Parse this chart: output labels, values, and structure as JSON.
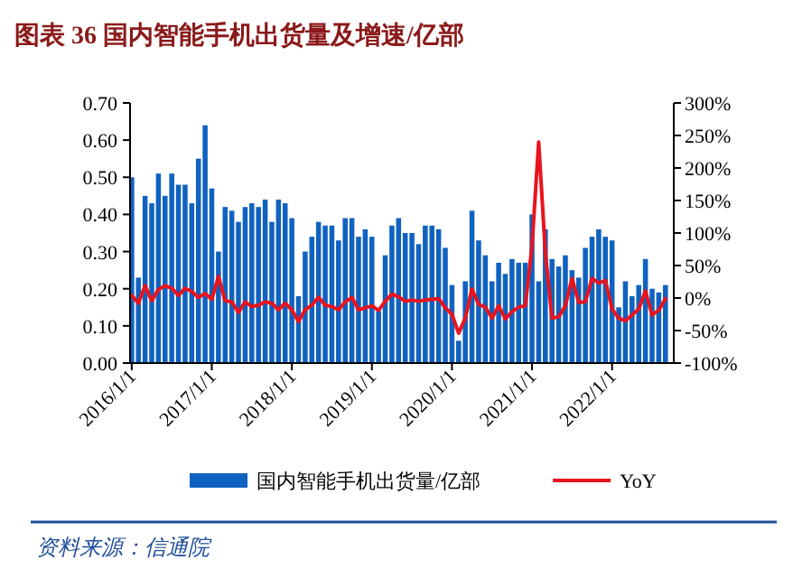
{
  "chart_data": {
    "type": "bar",
    "title": "图表 36   国内智能手机出货量及增速/亿部",
    "categories": [
      "2016/1/1",
      null,
      null,
      null,
      null,
      null,
      null,
      null,
      null,
      null,
      null,
      null,
      "2017/1/1",
      null,
      null,
      null,
      null,
      null,
      null,
      null,
      null,
      null,
      null,
      null,
      "2018/1/1",
      null,
      null,
      null,
      null,
      null,
      null,
      null,
      null,
      null,
      null,
      null,
      "2019/1/1",
      null,
      null,
      null,
      null,
      null,
      null,
      null,
      null,
      null,
      null,
      null,
      "2020/1/1",
      null,
      null,
      null,
      null,
      null,
      null,
      null,
      null,
      null,
      null,
      null,
      "2021/1/1",
      null,
      null,
      null,
      null,
      null,
      null,
      null,
      null,
      null,
      null,
      null,
      "2022/1/1",
      null,
      null,
      null,
      null,
      null,
      null,
      null,
      null
    ],
    "series": [
      {
        "name": "国内智能手机出货量/亿部",
        "color": "#1062c0",
        "values": [
          0.5,
          0.23,
          0.45,
          0.43,
          0.51,
          0.45,
          0.51,
          0.48,
          0.48,
          0.43,
          0.55,
          0.64,
          0.47,
          0.3,
          0.42,
          0.41,
          0.38,
          0.42,
          0.43,
          0.42,
          0.44,
          0.38,
          0.44,
          0.43,
          0.39,
          0.18,
          0.3,
          0.34,
          0.38,
          0.37,
          0.37,
          0.33,
          0.39,
          0.39,
          0.34,
          0.36,
          0.34,
          0.14,
          0.29,
          0.37,
          0.39,
          0.35,
          0.35,
          0.32,
          0.37,
          0.37,
          0.36,
          0.31,
          0.21,
          0.06,
          0.22,
          0.41,
          0.33,
          0.29,
          0.22,
          0.27,
          0.24,
          0.28,
          0.27,
          0.27,
          0.4,
          0.22,
          0.36,
          0.28,
          0.26,
          0.29,
          0.25,
          0.23,
          0.31,
          0.34,
          0.36,
          0.34,
          0.33,
          0.15,
          0.22,
          0.18,
          0.21,
          0.28,
          0.2,
          0.19,
          0.21
        ]
      },
      {
        "name": "YoY",
        "type": "line",
        "axis": "y2",
        "color": "#e8141e",
        "values": [
          4,
          -8,
          19,
          -4,
          13,
          19,
          15,
          4,
          15,
          10,
          1,
          7,
          -2,
          33,
          -4,
          -6,
          -22,
          -6,
          -13,
          -11,
          -6,
          -8,
          -18,
          -8,
          -18,
          -36,
          -18,
          -11,
          1,
          -11,
          -13,
          -18,
          -6,
          1,
          -18,
          -15,
          -12,
          -19,
          -5,
          6,
          2,
          -5,
          -3,
          -5,
          -3,
          -2,
          -1,
          -15,
          -25,
          -54,
          -31,
          14,
          -10,
          -14,
          -31,
          -12,
          -32,
          -21,
          -14,
          -12,
          80,
          240,
          70,
          -31,
          -29,
          -12,
          30,
          -7,
          -6,
          30,
          23,
          27,
          -17,
          -31,
          -35,
          -26,
          -17,
          11,
          -26,
          -19,
          -1
        ]
      }
    ],
    "ylim": [
      0,
      0.7
    ],
    "yticks": [
      {
        "value": 0,
        "label": "0.00"
      },
      {
        "value": 0.1,
        "label": "0.10"
      },
      {
        "value": 0.2,
        "label": "0.20"
      },
      {
        "value": 0.3,
        "label": "0.30"
      },
      {
        "value": 0.4,
        "label": "0.40"
      },
      {
        "value": 0.5,
        "label": "0.50"
      },
      {
        "value": 0.6,
        "label": "0.60"
      },
      {
        "value": 0.7,
        "label": "0.70"
      }
    ],
    "y2lim": [
      -100,
      300
    ],
    "y2ticks": [
      {
        "value": -100,
        "label": "-100%"
      },
      {
        "value": -50,
        "label": "-50%"
      },
      {
        "value": 0,
        "label": "0%"
      },
      {
        "value": 50,
        "label": "50%"
      },
      {
        "value": 100,
        "label": "100%"
      },
      {
        "value": 150,
        "label": "150%"
      },
      {
        "value": 200,
        "label": "200%"
      },
      {
        "value": 250,
        "label": "250%"
      },
      {
        "value": 300,
        "label": "300%"
      }
    ],
    "legend": "bottom",
    "annotations": [
      "资料来源：信通院"
    ]
  }
}
